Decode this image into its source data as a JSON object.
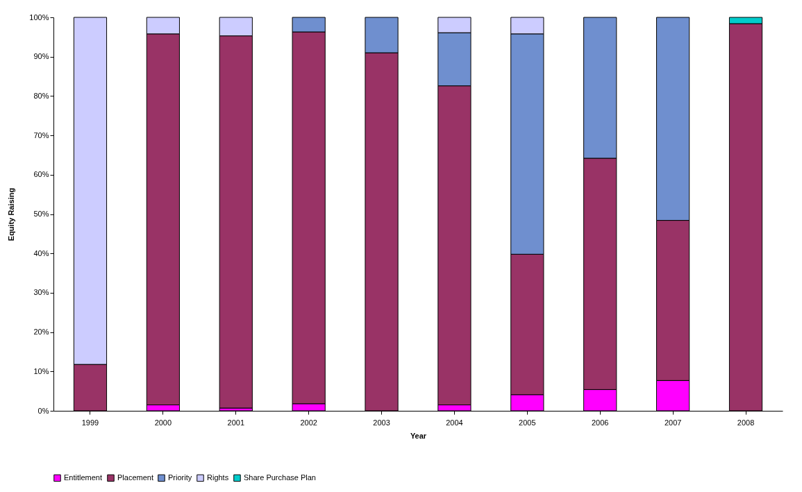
{
  "chart_data": {
    "type": "bar",
    "stacked": true,
    "xlabel": "Year",
    "ylabel": "Equity Raising",
    "categories": [
      "1999",
      "2000",
      "2001",
      "2002",
      "2003",
      "2004",
      "2005",
      "2006",
      "2007",
      "2008"
    ],
    "ylim": [
      0,
      100
    ],
    "yticks": [
      {
        "value": 0,
        "label": "0%"
      },
      {
        "value": 10,
        "label": "10%"
      },
      {
        "value": 20,
        "label": "20%"
      },
      {
        "value": 30,
        "label": "30%"
      },
      {
        "value": 40,
        "label": "40%"
      },
      {
        "value": 50,
        "label": "50%"
      },
      {
        "value": 60,
        "label": "60%"
      },
      {
        "value": 70,
        "label": "70%"
      },
      {
        "value": 80,
        "label": "80%"
      },
      {
        "value": 90,
        "label": "90%"
      },
      {
        "value": 100,
        "label": "100%"
      }
    ],
    "grid": false,
    "legend": "bottom",
    "series": [
      {
        "name": "Entitlement",
        "color": "#ff00ff",
        "values": [
          null,
          1.5,
          0.7,
          1.8,
          null,
          1.5,
          4.1,
          5.4,
          7.7,
          null
        ]
      },
      {
        "name": "Placement",
        "color": "#993366",
        "values": [
          11.8,
          94.3,
          94.6,
          94.5,
          91.0,
          81.1,
          35.7,
          58.8,
          40.7,
          98.4
        ]
      },
      {
        "name": "Priority",
        "color": "#6f8fcf",
        "values": [
          null,
          null,
          null,
          3.7,
          9.0,
          13.5,
          56.0,
          35.8,
          51.6,
          null
        ]
      },
      {
        "name": "Rights",
        "color": "#ccccff",
        "values": [
          88.2,
          4.2,
          4.7,
          null,
          null,
          3.9,
          4.2,
          null,
          null,
          null
        ]
      },
      {
        "name": "Share Purchase Plan",
        "color": "#00cccc",
        "values": [
          null,
          null,
          null,
          null,
          null,
          null,
          null,
          null,
          null,
          1.6
        ]
      }
    ]
  }
}
